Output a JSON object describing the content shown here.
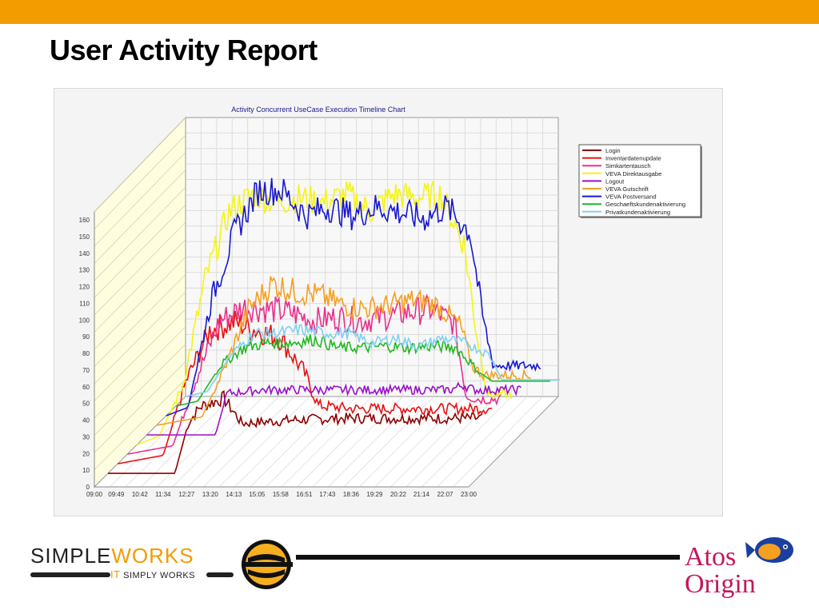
{
  "slide": {
    "title": "User Activity Report"
  },
  "colors": {
    "accent_bar": "#f39c00",
    "atos_red": "#c2185b"
  },
  "footer": {
    "simple_text": "SIMPLE",
    "works_text": "WORKS",
    "tagline_it": "IT",
    "tagline_rest": " SIMPLY WORKS",
    "atos_line1": "Atos",
    "atos_line2": "Origin",
    "logo_icons": [
      "simpleworks-s-logo-icon",
      "atos-fish-logo-icon"
    ]
  },
  "chart_data": {
    "type": "line",
    "title": "Activity Concurrent UseCase Execution Timeline Chart",
    "xlabel": "",
    "ylabel": "",
    "x_ticks": [
      "09:00",
      "09:49",
      "10:42",
      "11:34",
      "12:27",
      "13:20",
      "14:13",
      "15:05",
      "15:58",
      "16:51",
      "17:43",
      "18:36",
      "19:29",
      "20:22",
      "21:14",
      "22:07",
      "23:00"
    ],
    "y_ticks": [
      0,
      10,
      20,
      30,
      40,
      50,
      60,
      70,
      80,
      90,
      100,
      110,
      120,
      130,
      140,
      150,
      160
    ],
    "ylim": [
      0,
      160
    ],
    "xlim": [
      "09:00",
      "23:00"
    ],
    "grid": true,
    "legend_position": "top-right",
    "series": [
      {
        "name": "Login",
        "color": "#8b0000",
        "points": [
          [
            "09:00",
            0
          ],
          [
            "11:30",
            0
          ],
          [
            "12:00",
            30
          ],
          [
            "12:27",
            40
          ],
          [
            "13:20",
            45
          ],
          [
            "14:00",
            30
          ],
          [
            "16:00",
            32
          ],
          [
            "18:00",
            33
          ],
          [
            "20:00",
            33
          ],
          [
            "22:07",
            33
          ],
          [
            "23:00",
            33
          ]
        ]
      },
      {
        "name": "Inventardatenupdate",
        "color": "#e81010",
        "points": [
          [
            "09:00",
            0
          ],
          [
            "10:42",
            5
          ],
          [
            "11:34",
            50
          ],
          [
            "12:27",
            80
          ],
          [
            "13:20",
            85
          ],
          [
            "14:13",
            80
          ],
          [
            "15:05",
            75
          ],
          [
            "15:58",
            55
          ],
          [
            "16:30",
            35
          ],
          [
            "17:43",
            33
          ],
          [
            "19:29",
            33
          ],
          [
            "21:14",
            33
          ],
          [
            "23:00",
            33
          ]
        ]
      },
      {
        "name": "Simkartentausch",
        "color": "#e8308c",
        "points": [
          [
            "09:00",
            0
          ],
          [
            "10:42",
            5
          ],
          [
            "11:34",
            45
          ],
          [
            "12:27",
            80
          ],
          [
            "13:20",
            88
          ],
          [
            "14:13",
            87
          ],
          [
            "15:05",
            85
          ],
          [
            "15:58",
            80
          ],
          [
            "16:51",
            82
          ],
          [
            "17:43",
            80
          ],
          [
            "18:36",
            82
          ],
          [
            "19:29",
            85
          ],
          [
            "20:22",
            87
          ],
          [
            "21:14",
            78
          ],
          [
            "21:40",
            35
          ],
          [
            "22:07",
            33
          ],
          [
            "23:00",
            33
          ]
        ]
      },
      {
        "name": "VEVA Direktausgabe",
        "color": "#f5f510",
        "points": [
          [
            "09:00",
            0
          ],
          [
            "09:49",
            5
          ],
          [
            "10:42",
            35
          ],
          [
            "11:34",
            100
          ],
          [
            "12:27",
            140
          ],
          [
            "13:20",
            150
          ],
          [
            "14:13",
            145
          ],
          [
            "15:05",
            148
          ],
          [
            "15:58",
            145
          ],
          [
            "16:51",
            150
          ],
          [
            "17:43",
            140
          ],
          [
            "18:36",
            150
          ],
          [
            "19:29",
            148
          ],
          [
            "20:22",
            150
          ],
          [
            "21:14",
            120
          ],
          [
            "21:40",
            70
          ],
          [
            "22:07",
            30
          ],
          [
            "23:00",
            30
          ]
        ]
      },
      {
        "name": "Logout",
        "color": "#9a10c8",
        "points": [
          [
            "09:00",
            0
          ],
          [
            "11:34",
            0
          ],
          [
            "12:00",
            25
          ],
          [
            "13:20",
            27
          ],
          [
            "15:05",
            27
          ],
          [
            "16:51",
            27
          ],
          [
            "18:36",
            27
          ],
          [
            "20:22",
            27
          ],
          [
            "20:50",
            30
          ],
          [
            "21:14",
            27
          ],
          [
            "22:07",
            27
          ],
          [
            "23:00",
            27
          ]
        ]
      },
      {
        "name": "VEVA Gutschrift",
        "color": "#f5a020",
        "points": [
          [
            "09:00",
            0
          ],
          [
            "10:42",
            5
          ],
          [
            "11:34",
            35
          ],
          [
            "12:27",
            70
          ],
          [
            "13:20",
            85
          ],
          [
            "14:13",
            80
          ],
          [
            "15:05",
            78
          ],
          [
            "15:58",
            72
          ],
          [
            "16:51",
            70
          ],
          [
            "17:43",
            72
          ],
          [
            "18:36",
            75
          ],
          [
            "19:29",
            72
          ],
          [
            "20:22",
            60
          ],
          [
            "20:50",
            35
          ],
          [
            "21:14",
            30
          ],
          [
            "22:07",
            30
          ],
          [
            "23:00",
            30
          ]
        ]
      },
      {
        "name": "VEVA Postversand",
        "color": "#1818d0",
        "points": [
          [
            "09:00",
            0
          ],
          [
            "09:49",
            5
          ],
          [
            "10:42",
            70
          ],
          [
            "11:34",
            110
          ],
          [
            "12:27",
            135
          ],
          [
            "13:20",
            135
          ],
          [
            "14:13",
            120
          ],
          [
            "15:05",
            125
          ],
          [
            "15:58",
            120
          ],
          [
            "16:51",
            125
          ],
          [
            "17:43",
            122
          ],
          [
            "18:36",
            118
          ],
          [
            "19:29",
            125
          ],
          [
            "20:22",
            110
          ],
          [
            "20:50",
            60
          ],
          [
            "21:14",
            30
          ],
          [
            "22:07",
            30
          ],
          [
            "23:00",
            30
          ]
        ]
      },
      {
        "name": "Geschaeftskundenaktivierung",
        "color": "#22b822",
        "points": [
          [
            "09:00",
            0
          ],
          [
            "09:49",
            3
          ],
          [
            "10:42",
            25
          ],
          [
            "11:34",
            35
          ],
          [
            "12:27",
            38
          ],
          [
            "13:20",
            38
          ],
          [
            "14:13",
            40
          ],
          [
            "15:05",
            35
          ],
          [
            "15:58",
            35
          ],
          [
            "16:51",
            36
          ],
          [
            "17:43",
            35
          ],
          [
            "18:36",
            36
          ],
          [
            "19:29",
            35
          ],
          [
            "20:22",
            20
          ],
          [
            "20:50",
            15
          ],
          [
            "21:14",
            15
          ],
          [
            "22:07",
            15
          ],
          [
            "23:00",
            15
          ]
        ]
      },
      {
        "name": "Privatkundenaktivierung",
        "color": "#80d0f0",
        "points": [
          [
            "09:00",
            0
          ],
          [
            "09:49",
            3
          ],
          [
            "10:42",
            25
          ],
          [
            "11:34",
            38
          ],
          [
            "12:27",
            38
          ],
          [
            "13:20",
            40
          ],
          [
            "14:13",
            38
          ],
          [
            "15:05",
            38
          ],
          [
            "15:58",
            32
          ],
          [
            "16:51",
            35
          ],
          [
            "17:43",
            30
          ],
          [
            "18:36",
            35
          ],
          [
            "19:29",
            32
          ],
          [
            "20:22",
            25
          ],
          [
            "20:50",
            10
          ],
          [
            "21:14",
            10
          ],
          [
            "22:07",
            10
          ],
          [
            "23:00",
            10
          ]
        ]
      }
    ]
  }
}
